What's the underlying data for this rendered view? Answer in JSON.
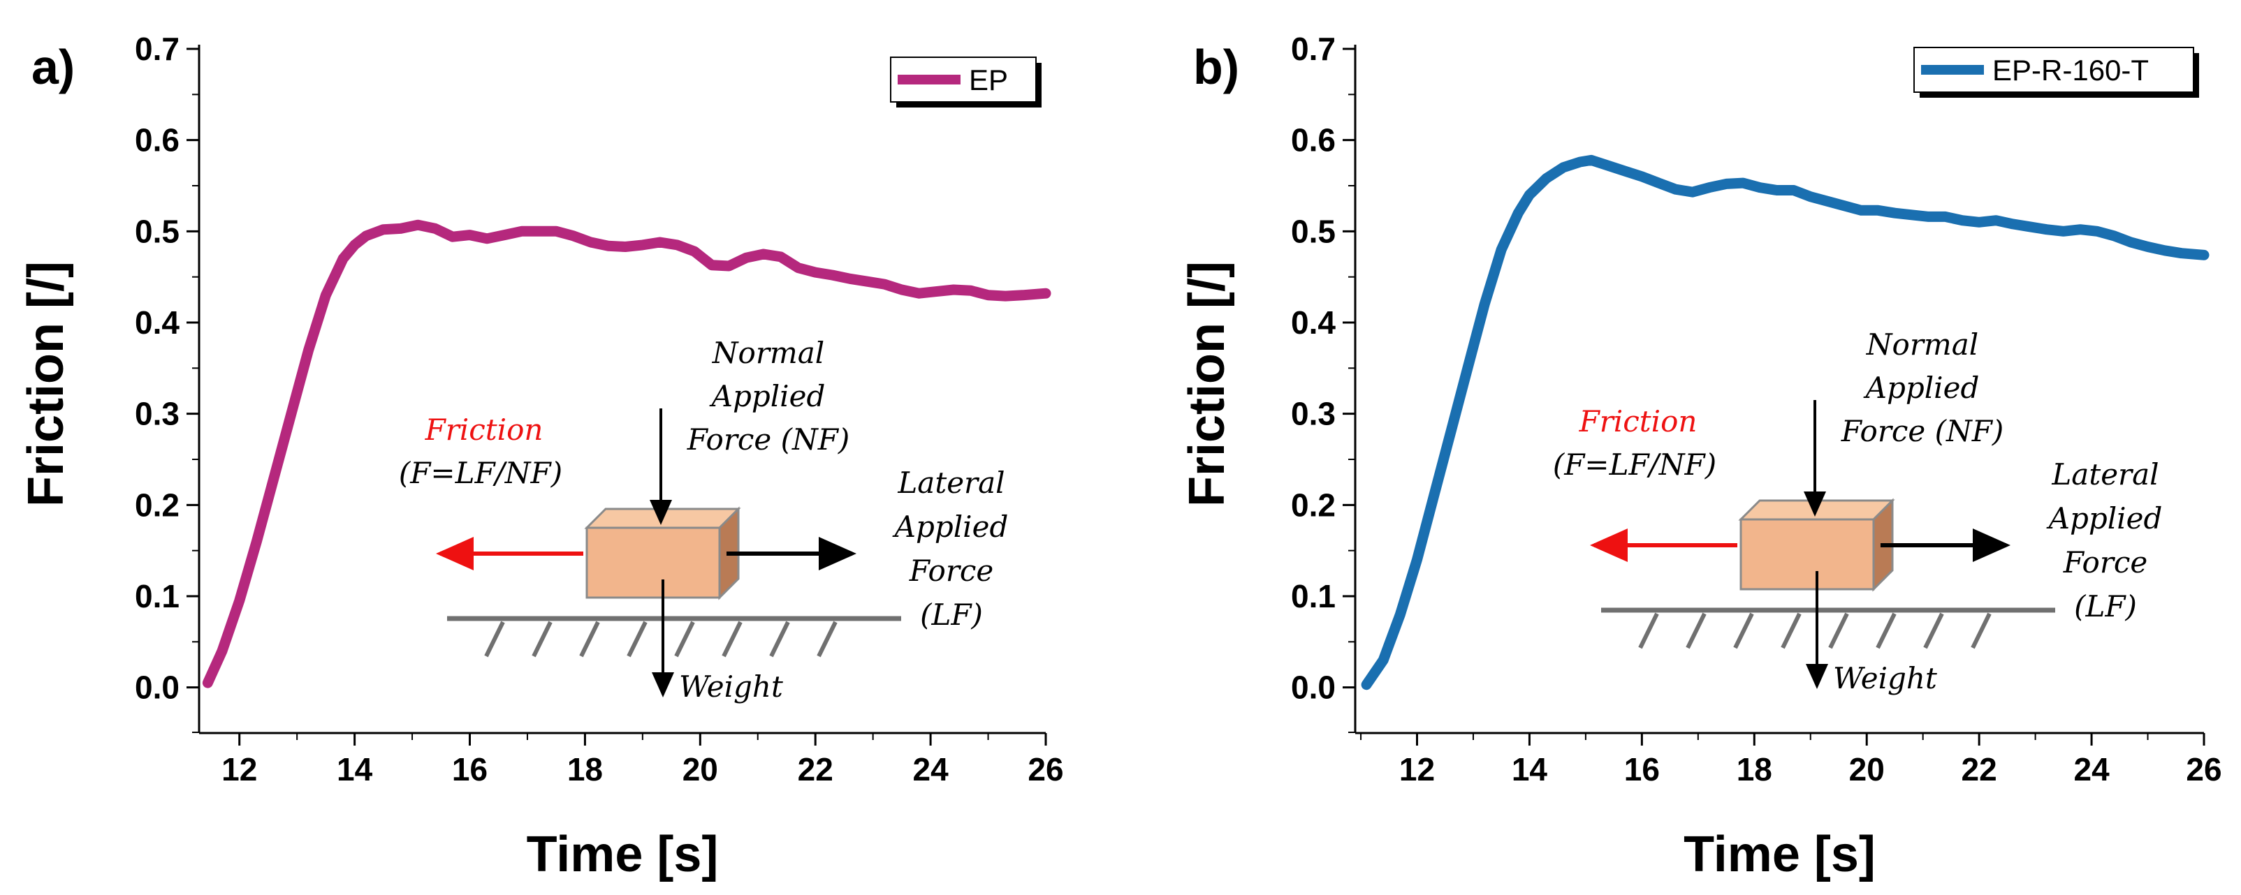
{
  "chart_data": [
    {
      "panel_label": "a)",
      "type": "line",
      "xlabel": "Time [s]",
      "ylabel": "Friction [/]",
      "xlim": [
        11.3,
        26
      ],
      "ylim": [
        -0.05,
        0.7
      ],
      "x_ticks": [
        12,
        14,
        16,
        18,
        20,
        22,
        24,
        26
      ],
      "y_ticks": [
        0.0,
        0.1,
        0.2,
        0.3,
        0.4,
        0.5,
        0.6,
        0.7
      ],
      "y_tick_labels": [
        "0.0",
        "0.1",
        "0.2",
        "0.3",
        "0.4",
        "0.5",
        "0.6",
        "0.7"
      ],
      "legend": {
        "position": "top-right"
      },
      "series": [
        {
          "name": "EP",
          "color": "#b5287d",
          "x": [
            11.45,
            11.7,
            12.0,
            12.3,
            12.6,
            12.9,
            13.2,
            13.5,
            13.8,
            14.0,
            14.2,
            14.5,
            14.8,
            15.1,
            15.4,
            15.7,
            16.0,
            16.3,
            16.6,
            16.9,
            17.2,
            17.5,
            17.8,
            18.1,
            18.4,
            18.7,
            19.0,
            19.3,
            19.6,
            19.9,
            20.2,
            20.5,
            20.8,
            21.1,
            21.4,
            21.7,
            22.0,
            22.3,
            22.6,
            22.9,
            23.2,
            23.5,
            23.8,
            24.1,
            24.4,
            24.7,
            25.0,
            25.3,
            25.6,
            26.0
          ],
          "y": [
            0.005,
            0.04,
            0.095,
            0.16,
            0.23,
            0.3,
            0.37,
            0.43,
            0.47,
            0.485,
            0.495,
            0.502,
            0.503,
            0.507,
            0.503,
            0.494,
            0.496,
            0.492,
            0.496,
            0.5,
            0.5,
            0.5,
            0.495,
            0.488,
            0.484,
            0.483,
            0.485,
            0.488,
            0.485,
            0.478,
            0.463,
            0.462,
            0.471,
            0.475,
            0.472,
            0.46,
            0.455,
            0.452,
            0.448,
            0.445,
            0.442,
            0.436,
            0.432,
            0.434,
            0.436,
            0.435,
            0.43,
            0.429,
            0.43,
            0.432
          ]
        }
      ],
      "diagram": {
        "friction_label": "Friction",
        "friction_formula": "(F=LF/NF)",
        "normal_label_1": "Normal",
        "normal_label_2": "Applied",
        "normal_label_3": "Force (NF)",
        "lateral_label_1": "Lateral",
        "lateral_label_2": "Applied",
        "lateral_label_3": "Force",
        "lateral_label_4": "(LF)",
        "weight_label": "Weight",
        "friction_color": "#ee1111",
        "block_color": "#f2b58c",
        "block_side_color": "#b97b55"
      }
    },
    {
      "panel_label": "b)",
      "type": "line",
      "xlabel": "Time [s]",
      "ylabel": "Friction [/]",
      "xlim": [
        10.9,
        26
      ],
      "ylim": [
        -0.05,
        0.7
      ],
      "x_ticks": [
        12,
        14,
        16,
        18,
        20,
        22,
        24,
        26
      ],
      "y_ticks": [
        0.0,
        0.1,
        0.2,
        0.3,
        0.4,
        0.5,
        0.6,
        0.7
      ],
      "y_tick_labels": [
        "0.0",
        "0.1",
        "0.2",
        "0.3",
        "0.4",
        "0.5",
        "0.6",
        "0.7"
      ],
      "legend": {
        "position": "top-right"
      },
      "series": [
        {
          "name": "EP-R-160-T",
          "color": "#1a6fb0",
          "x": [
            11.1,
            11.4,
            11.7,
            12.0,
            12.3,
            12.6,
            12.9,
            13.2,
            13.5,
            13.8,
            14.0,
            14.3,
            14.6,
            14.9,
            15.1,
            15.4,
            15.7,
            16.0,
            16.3,
            16.6,
            16.9,
            17.2,
            17.5,
            17.8,
            18.1,
            18.4,
            18.7,
            19.0,
            19.3,
            19.6,
            19.9,
            20.2,
            20.5,
            20.8,
            21.1,
            21.4,
            21.7,
            22.0,
            22.3,
            22.6,
            22.9,
            23.2,
            23.5,
            23.8,
            24.1,
            24.4,
            24.7,
            25.0,
            25.3,
            25.6,
            26.0
          ],
          "y": [
            0.003,
            0.03,
            0.08,
            0.14,
            0.21,
            0.28,
            0.35,
            0.42,
            0.48,
            0.52,
            0.54,
            0.558,
            0.57,
            0.576,
            0.578,
            0.572,
            0.566,
            0.56,
            0.553,
            0.546,
            0.543,
            0.548,
            0.552,
            0.553,
            0.548,
            0.545,
            0.545,
            0.538,
            0.533,
            0.528,
            0.523,
            0.523,
            0.52,
            0.518,
            0.516,
            0.516,
            0.512,
            0.51,
            0.512,
            0.508,
            0.505,
            0.502,
            0.5,
            0.502,
            0.5,
            0.495,
            0.488,
            0.483,
            0.479,
            0.476,
            0.474
          ]
        }
      ],
      "diagram": {
        "friction_label": "Friction",
        "friction_formula": "(F=LF/NF)",
        "normal_label_1": "Normal",
        "normal_label_2": "Applied",
        "normal_label_3": "Force (NF)",
        "lateral_label_1": "Lateral",
        "lateral_label_2": "Applied",
        "lateral_label_3": "Force",
        "lateral_label_4": "(LF)",
        "weight_label": "Weight",
        "friction_color": "#ee1111",
        "block_color": "#f2b58c",
        "block_side_color": "#b97b55"
      }
    }
  ]
}
